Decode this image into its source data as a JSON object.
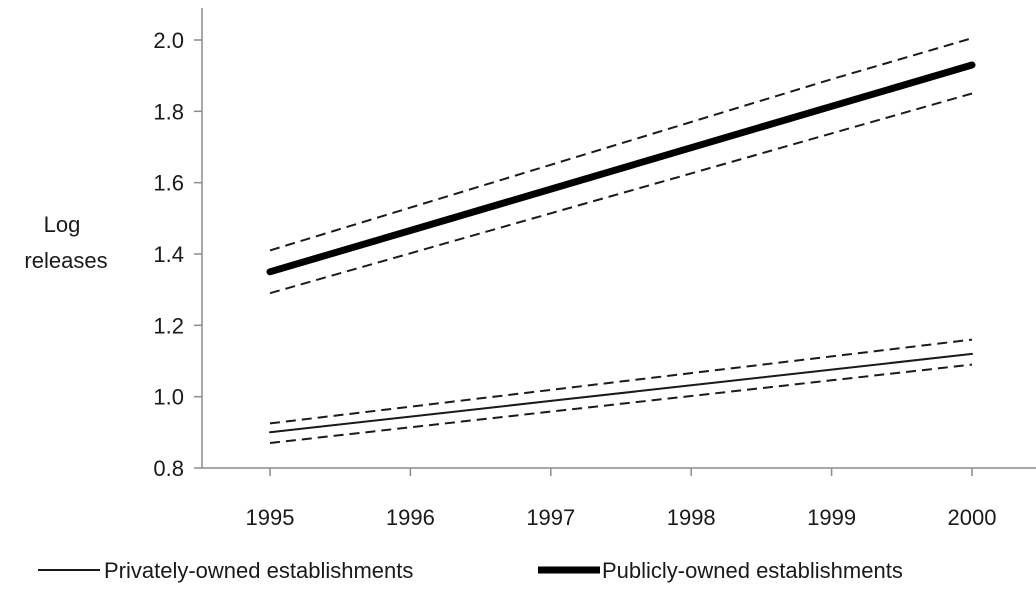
{
  "chart_data": {
    "type": "line",
    "title": "",
    "xlabel": "",
    "ylabel_lines": [
      "Log",
      "releases"
    ],
    "x": [
      1995,
      1996,
      1997,
      1998,
      1999,
      2000
    ],
    "xlim": [
      1995,
      2000
    ],
    "ylim": [
      0.8,
      2.0
    ],
    "y_ticks": [
      "0.8",
      "1.0",
      "1.2",
      "1.4",
      "1.6",
      "1.8",
      "2.0"
    ],
    "grid": false,
    "legend_position": "bottom",
    "series": [
      {
        "name": "Privately-owned establishments",
        "color": "#1a1a1a",
        "style": "thin",
        "values": [
          0.9,
          0.944,
          0.988,
          1.032,
          1.076,
          1.12
        ],
        "ci_upper": [
          0.925,
          0.972,
          1.019,
          1.066,
          1.113,
          1.16
        ],
        "ci_lower": [
          0.87,
          0.914,
          0.958,
          1.002,
          1.046,
          1.09
        ]
      },
      {
        "name": "Publicly-owned establishments",
        "color": "#000000",
        "style": "thick",
        "values": [
          1.35,
          1.466,
          1.582,
          1.698,
          1.814,
          1.93
        ],
        "ci_upper": [
          1.41,
          1.53,
          1.65,
          1.77,
          1.89,
          2.005
        ],
        "ci_lower": [
          1.29,
          1.402,
          1.514,
          1.626,
          1.738,
          1.85
        ]
      }
    ]
  }
}
